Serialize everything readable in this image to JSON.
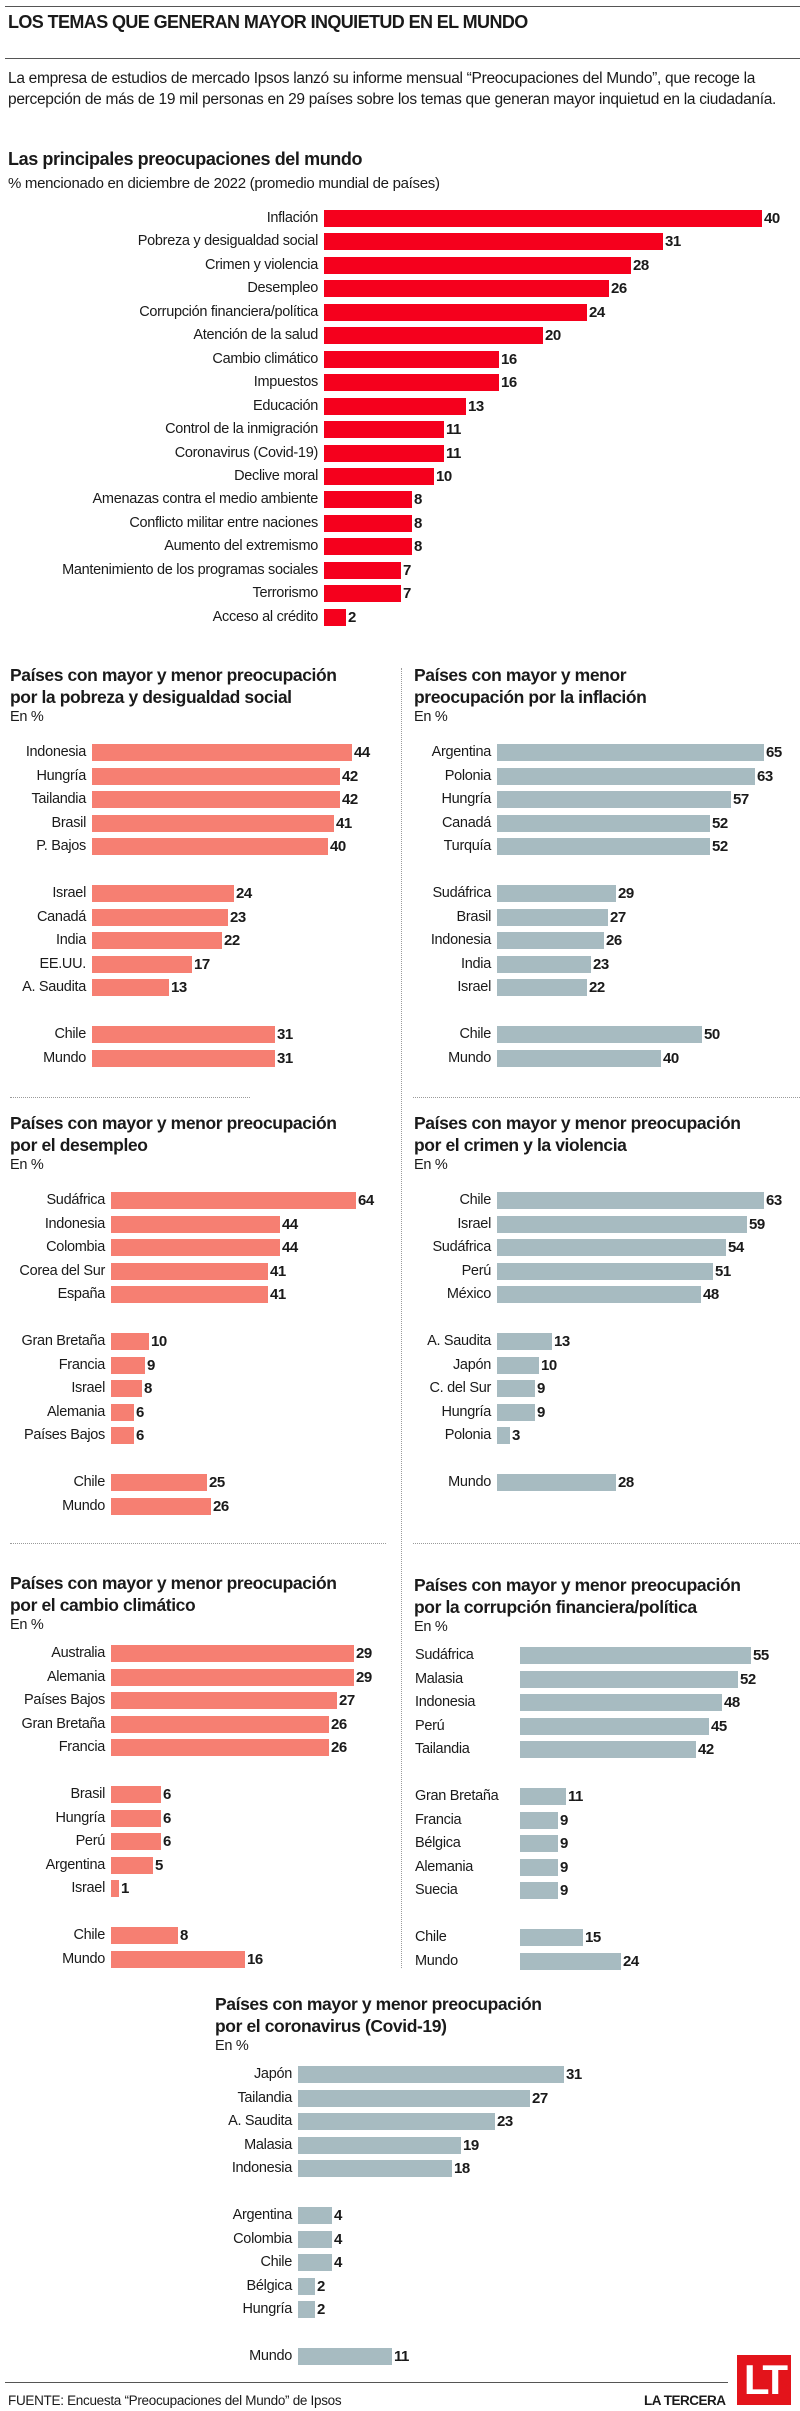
{
  "header": {
    "title": "LOS TEMAS QUE GENERAN MAYOR INQUIETUD EN EL MUNDO",
    "intro": "La empresa de estudios de mercado Ipsos lanzó su informe mensual “Preocupaciones del Mundo”, que recoge la percepción de más de 19 mil personas en 29 países sobre los temas que generan mayor inquietud en la ciudadanía."
  },
  "colors": {
    "main_bar": "#f5001d",
    "salmon_bar": "#f67f72",
    "gray_bar": "#a7bbc1",
    "logo_red": "#e3141b"
  },
  "chart_data": [
    {
      "id": "main",
      "type": "bar",
      "orientation": "horizontal",
      "title": "Las principales preocupaciones del mundo",
      "subtitle": "% mencionado en diciembre de 2022 (promedio mundial de países)",
      "categories": [
        "Inflación",
        "Pobreza y desigualdad social",
        "Crimen y violencia",
        "Desempleo",
        "Corrupción financiera/política",
        "Atención de la salud",
        "Cambio climático",
        "Impuestos",
        "Educación",
        "Control de la inmigración",
        "Coronavirus (Covid-19)",
        "Declive moral",
        "Amenazas contra el medio ambiente",
        "Conflicto militar entre naciones",
        "Aumento del extremismo",
        "Mantenimiento de los programas sociales",
        "Terrorismo",
        "Acceso al crédito"
      ],
      "values": [
        40,
        31,
        28,
        26,
        24,
        20,
        16,
        16,
        13,
        11,
        11,
        10,
        8,
        8,
        8,
        7,
        7,
        2
      ],
      "color": "main_bar"
    },
    {
      "id": "pobreza",
      "type": "bar",
      "orientation": "horizontal",
      "title": [
        "Países con mayor y menor preocupación",
        "por la pobreza y desigualdad social"
      ],
      "subtitle": "En %",
      "groups": [
        {
          "categories": [
            "Indonesia",
            "Hungría",
            "Tailandia",
            "Brasil",
            "P. Bajos"
          ],
          "values": [
            44,
            42,
            42,
            41,
            40
          ]
        },
        {
          "categories": [
            "Israel",
            "Canadá",
            "India",
            "EE.UU.",
            "A. Saudita"
          ],
          "values": [
            24,
            23,
            22,
            17,
            13
          ]
        },
        {
          "categories": [
            "Chile",
            "Mundo"
          ],
          "values": [
            31,
            31
          ]
        }
      ],
      "color": "salmon_bar"
    },
    {
      "id": "inflacion",
      "type": "bar",
      "orientation": "horizontal",
      "title": [
        "Países con mayor y menor",
        "preocupación por la inflación"
      ],
      "subtitle": "En %",
      "groups": [
        {
          "categories": [
            "Argentina",
            "Polonia",
            "Hungría",
            "Canadá",
            "Turquía"
          ],
          "values": [
            65,
            63,
            57,
            52,
            52
          ]
        },
        {
          "categories": [
            "Sudáfrica",
            "Brasil",
            "Indonesia",
            "India",
            "Israel"
          ],
          "values": [
            29,
            27,
            26,
            23,
            22
          ]
        },
        {
          "categories": [
            "Chile",
            "Mundo"
          ],
          "values": [
            50,
            40
          ]
        }
      ],
      "color": "gray_bar"
    },
    {
      "id": "desempleo",
      "type": "bar",
      "orientation": "horizontal",
      "title": [
        "Países con mayor y menor preocupación",
        "por el desempleo"
      ],
      "subtitle": "En %",
      "groups": [
        {
          "categories": [
            "Sudáfrica",
            "Indonesia",
            "Colombia",
            "Corea del Sur",
            "España"
          ],
          "values": [
            64,
            44,
            44,
            41,
            41
          ]
        },
        {
          "categories": [
            "Gran Bretaña",
            "Francia",
            "Israel",
            "Alemania",
            "Países Bajos"
          ],
          "values": [
            10,
            9,
            8,
            6,
            6
          ]
        },
        {
          "categories": [
            "Chile",
            "Mundo"
          ],
          "values": [
            25,
            26
          ]
        }
      ],
      "color": "salmon_bar"
    },
    {
      "id": "crimen",
      "type": "bar",
      "orientation": "horizontal",
      "title": [
        "Países con mayor y menor preocupación",
        "por el crimen y la violencia"
      ],
      "subtitle": "En %",
      "groups": [
        {
          "categories": [
            "Chile",
            "Israel",
            "Sudáfrica",
            "Perú",
            "México"
          ],
          "values": [
            63,
            59,
            54,
            51,
            48
          ]
        },
        {
          "categories": [
            "A. Saudita",
            "Japón",
            "C. del Sur",
            "Hungría",
            "Polonia"
          ],
          "values": [
            13,
            10,
            9,
            9,
            3
          ]
        },
        {
          "categories": [
            "Mundo"
          ],
          "values": [
            28
          ]
        }
      ],
      "color": "gray_bar"
    },
    {
      "id": "clima",
      "type": "bar",
      "orientation": "horizontal",
      "title": [
        "Países con mayor y menor preocupación",
        "por el cambio climático"
      ],
      "subtitle": "En %",
      "groups": [
        {
          "categories": [
            "Australia",
            "Alemania",
            "Países Bajos",
            "Gran Bretaña",
            "Francia"
          ],
          "values": [
            29,
            29,
            27,
            26,
            26
          ]
        },
        {
          "categories": [
            "Brasil",
            "Hungría",
            "Perú",
            "Argentina",
            "Israel"
          ],
          "values": [
            6,
            6,
            6,
            5,
            1
          ]
        },
        {
          "categories": [
            "Chile",
            "Mundo"
          ],
          "values": [
            8,
            16
          ]
        }
      ],
      "color": "salmon_bar"
    },
    {
      "id": "corrupcion",
      "type": "bar",
      "orientation": "horizontal",
      "title": [
        "Países con mayor y menor preocupación",
        "por la corrupción financiera/política"
      ],
      "subtitle": "En %",
      "groups": [
        {
          "categories": [
            "Sudáfrica",
            "Malasia",
            "Indonesia",
            "Perú",
            "Tailandia"
          ],
          "values": [
            55,
            52,
            48,
            45,
            42
          ]
        },
        {
          "categories": [
            "Gran Bretaña",
            "Francia",
            "Bélgica",
            "Alemania",
            "Suecia"
          ],
          "values": [
            11,
            9,
            9,
            9,
            9
          ]
        },
        {
          "categories": [
            "Chile",
            "Mundo"
          ],
          "values": [
            15,
            24
          ]
        }
      ],
      "color": "gray_bar"
    },
    {
      "id": "covid",
      "type": "bar",
      "orientation": "horizontal",
      "title": [
        "Países con mayor y menor preocupación",
        "por el coronavirus (Covid-19)"
      ],
      "subtitle": "En %",
      "groups": [
        {
          "categories": [
            "Japón",
            "Tailandia",
            "A. Saudita",
            "Malasia",
            "Indonesia"
          ],
          "values": [
            31,
            27,
            23,
            19,
            18
          ]
        },
        {
          "categories": [
            "Argentina",
            "Colombia",
            "Chile",
            "Bélgica",
            "Hungría"
          ],
          "values": [
            4,
            4,
            4,
            2,
            2
          ]
        },
        {
          "categories": [
            "Mundo"
          ],
          "values": [
            11
          ]
        }
      ],
      "color": "gray_bar"
    }
  ],
  "footer": {
    "source": "FUENTE: Encuesta “Preocupaciones del Mundo” de Ipsos",
    "brand": "LA TERCERA",
    "logo_text": "LT"
  }
}
